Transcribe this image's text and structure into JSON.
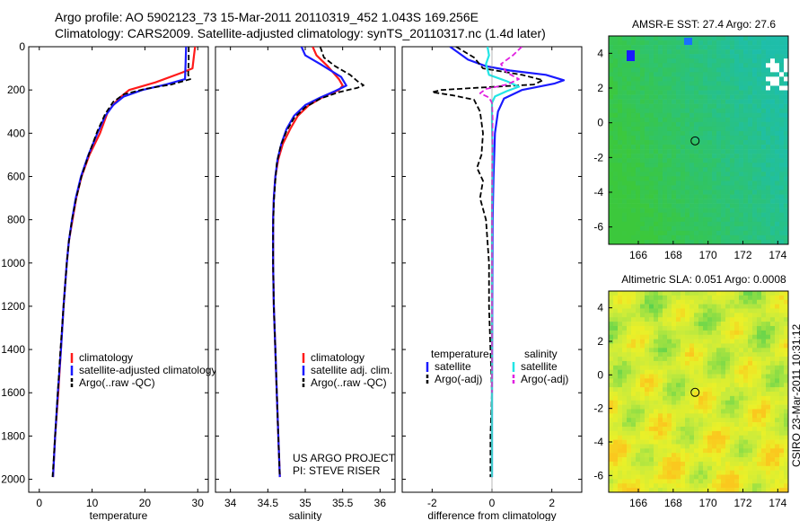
{
  "header": {
    "title_line1": "Argo profile: AO 5902123_73 15-Mar-2011 20110319_452 1.043S 169.256E",
    "title_line2": "Climatology: CARS2009. Satellite-adjusted climatology: synTS_20110317.nc (1.4d later)"
  },
  "side_stamp": "CSIRO 23-Mar-2011 10:31:12",
  "project_note": [
    "US ARGO PROJECT",
    "PI: STEVE RISER"
  ],
  "colors": {
    "climatology": "#ff1a1a",
    "satellite": "#1a1aff",
    "argo": "#000000",
    "sal_satellite": "#22e5e5",
    "sal_argo": "#e020e0"
  },
  "chart_data": [
    {
      "id": "temperature",
      "type": "line",
      "xlabel": "temperature",
      "ylabel": "",
      "xlim": [
        -2,
        32
      ],
      "ylim": [
        2060,
        0
      ],
      "xticks": [
        0,
        10,
        20,
        30
      ],
      "yticks": [
        0,
        200,
        400,
        600,
        800,
        1000,
        1200,
        1400,
        1600,
        1800,
        2000
      ],
      "legend": {
        "position": "lower-right",
        "entries": [
          "climatology",
          "satellite-adjusted climatology",
          "Argo(..raw -QC)"
        ]
      },
      "series": [
        {
          "name": "climatology",
          "color": "#ff1a1a",
          "width": 2.2,
          "dash": "",
          "points": [
            [
              29.5,
              0
            ],
            [
              29.3,
              40
            ],
            [
              29,
              100
            ],
            [
              27,
              120
            ],
            [
              22,
              165
            ],
            [
              17,
              200
            ],
            [
              15,
              240
            ],
            [
              13,
              300
            ],
            [
              11.5,
              400
            ],
            [
              9.5,
              500
            ],
            [
              8,
              600
            ],
            [
              7,
              700
            ],
            [
              6.3,
              800
            ],
            [
              5.6,
              900
            ],
            [
              5.2,
              1000
            ],
            [
              4.6,
              1200
            ],
            [
              4.1,
              1400
            ],
            [
              3.6,
              1600
            ],
            [
              3,
              1800
            ],
            [
              2.6,
              1990
            ]
          ]
        },
        {
          "name": "satellite-adjusted climatology",
          "color": "#1a1aff",
          "width": 2.2,
          "dash": "",
          "points": [
            [
              27.8,
              0
            ],
            [
              27.7,
              80
            ],
            [
              27.6,
              150
            ],
            [
              24,
              175
            ],
            [
              19.5,
              200
            ],
            [
              16,
              230
            ],
            [
              14,
              270
            ],
            [
              12.5,
              320
            ],
            [
              11,
              400
            ],
            [
              9.3,
              500
            ],
            [
              7.9,
              600
            ],
            [
              6.9,
              700
            ],
            [
              6.2,
              800
            ],
            [
              5.6,
              900
            ],
            [
              5.2,
              1000
            ],
            [
              4.6,
              1200
            ],
            [
              4.1,
              1400
            ],
            [
              3.5,
              1600
            ],
            [
              3,
              1800
            ],
            [
              2.6,
              1990
            ]
          ]
        },
        {
          "name": "Argo(..raw -QC)",
          "color": "#000000",
          "width": 1.8,
          "dash": "6,3",
          "points": [
            [
              28.3,
              0
            ],
            [
              28.3,
              60
            ],
            [
              28.2,
              130
            ],
            [
              28.6,
              150
            ],
            [
              25,
              175
            ],
            [
              20,
              195
            ],
            [
              16,
              220
            ],
            [
              14,
              255
            ],
            [
              12.5,
              310
            ],
            [
              11,
              390
            ],
            [
              9.5,
              490
            ],
            [
              8,
              600
            ],
            [
              7,
              700
            ],
            [
              6.2,
              800
            ],
            [
              5.6,
              900
            ],
            [
              5.2,
              1000
            ],
            [
              4.6,
              1200
            ],
            [
              4,
              1400
            ],
            [
              3.5,
              1600
            ],
            [
              3,
              1800
            ],
            [
              2.5,
              1990
            ]
          ]
        }
      ]
    },
    {
      "id": "salinity",
      "type": "line",
      "xlabel": "salinity",
      "ylabel": "",
      "xlim": [
        33.8,
        36.2
      ],
      "ylim": [
        2060,
        0
      ],
      "xticks": [
        34,
        34.5,
        35,
        35.5,
        36
      ],
      "yticks": [],
      "legend": {
        "position": "lower-right",
        "entries": [
          "climatology",
          "satellite adj. clim.",
          "Argo(..raw -QC)"
        ]
      },
      "series": [
        {
          "name": "climatology",
          "color": "#ff1a1a",
          "width": 2.2,
          "dash": "",
          "points": [
            [
              35.1,
              0
            ],
            [
              35.15,
              40
            ],
            [
              35.3,
              90
            ],
            [
              35.45,
              150
            ],
            [
              35.5,
              180
            ],
            [
              35.45,
              200
            ],
            [
              35.25,
              230
            ],
            [
              35.05,
              270
            ],
            [
              34.9,
              320
            ],
            [
              34.8,
              380
            ],
            [
              34.7,
              450
            ],
            [
              34.64,
              520
            ],
            [
              34.6,
              600
            ],
            [
              34.58,
              700
            ],
            [
              34.57,
              800
            ],
            [
              34.57,
              1000
            ],
            [
              34.58,
              1200
            ],
            [
              34.6,
              1400
            ],
            [
              34.62,
              1600
            ],
            [
              34.64,
              1800
            ],
            [
              34.66,
              1990
            ]
          ]
        },
        {
          "name": "satellite adj. clim.",
          "color": "#1a1aff",
          "width": 2.2,
          "dash": "",
          "points": [
            [
              34.95,
              0
            ],
            [
              35,
              40
            ],
            [
              35.2,
              80
            ],
            [
              35.48,
              140
            ],
            [
              35.55,
              180
            ],
            [
              35.4,
              205
            ],
            [
              35.2,
              235
            ],
            [
              35,
              270
            ],
            [
              34.85,
              320
            ],
            [
              34.75,
              380
            ],
            [
              34.68,
              450
            ],
            [
              34.63,
              520
            ],
            [
              34.6,
              600
            ],
            [
              34.58,
              700
            ],
            [
              34.57,
              800
            ],
            [
              34.57,
              1000
            ],
            [
              34.58,
              1200
            ],
            [
              34.6,
              1400
            ],
            [
              34.62,
              1600
            ],
            [
              34.64,
              1800
            ],
            [
              34.66,
              1990
            ]
          ]
        },
        {
          "name": "Argo(..raw -QC)",
          "color": "#000000",
          "width": 1.8,
          "dash": "6,3",
          "points": [
            [
              35.2,
              0
            ],
            [
              35.25,
              50
            ],
            [
              35.4,
              90
            ],
            [
              35.6,
              130
            ],
            [
              35.7,
              160
            ],
            [
              35.78,
              178
            ],
            [
              35.7,
              190
            ],
            [
              35.45,
              210
            ],
            [
              35.2,
              240
            ],
            [
              35,
              280
            ],
            [
              34.85,
              330
            ],
            [
              34.75,
              390
            ],
            [
              34.67,
              460
            ],
            [
              34.62,
              540
            ],
            [
              34.6,
              620
            ],
            [
              34.58,
              720
            ],
            [
              34.57,
              850
            ],
            [
              34.57,
              1000
            ],
            [
              34.58,
              1200
            ],
            [
              34.6,
              1400
            ],
            [
              34.62,
              1600
            ],
            [
              34.64,
              1800
            ],
            [
              34.66,
              1990
            ]
          ]
        }
      ]
    },
    {
      "id": "difference",
      "type": "line",
      "xlabel": "difference from climatology",
      "ylabel": "",
      "xlim": [
        -3,
        3
      ],
      "ylim": [
        2060,
        0
      ],
      "xticks": [
        -2,
        0,
        2
      ],
      "yticks": [],
      "legend": {
        "position": "lower-center",
        "headers": [
          "temperature",
          "salinity"
        ],
        "entries": [
          "satellite",
          "Argo(-adj)",
          "satellite",
          "Argo(-adj)"
        ]
      },
      "series": [
        {
          "name": "temperature satellite",
          "color": "#1a1aff",
          "width": 2.2,
          "dash": "",
          "points": [
            [
              -1.4,
              0
            ],
            [
              -0.8,
              60
            ],
            [
              -0.2,
              90
            ],
            [
              0.6,
              110
            ],
            [
              1.8,
              130
            ],
            [
              2.4,
              155
            ],
            [
              2.1,
              170
            ],
            [
              1.0,
              200
            ],
            [
              0.4,
              240
            ],
            [
              0.2,
              300
            ],
            [
              0.1,
              400
            ],
            [
              0.05,
              600
            ],
            [
              0.02,
              800
            ],
            [
              0.01,
              1200
            ],
            [
              0,
              1600
            ],
            [
              0,
              1990
            ]
          ]
        },
        {
          "name": "temperature Argo(-adj)",
          "color": "#000000",
          "width": 1.8,
          "dash": "6,3",
          "points": [
            [
              -1.2,
              0
            ],
            [
              -0.6,
              50
            ],
            [
              -0.3,
              100
            ],
            [
              1.0,
              130
            ],
            [
              1.7,
              155
            ],
            [
              1.4,
              175
            ],
            [
              -0.5,
              190
            ],
            [
              -1.7,
              200
            ],
            [
              -2.0,
              210
            ],
            [
              -1.3,
              225
            ],
            [
              -0.6,
              245
            ],
            [
              -0.4,
              300
            ],
            [
              -0.3,
              400
            ],
            [
              -0.35,
              500
            ],
            [
              -0.5,
              560
            ],
            [
              -0.3,
              620
            ],
            [
              -0.4,
              700
            ],
            [
              -0.2,
              800
            ],
            [
              -0.15,
              900
            ],
            [
              -0.1,
              1000
            ],
            [
              -0.1,
              1200
            ],
            [
              -0.05,
              1400
            ],
            [
              0,
              1600
            ],
            [
              -0.05,
              1800
            ],
            [
              -0.05,
              1990
            ]
          ]
        },
        {
          "name": "salinity satellite",
          "color": "#22e5e5",
          "width": 2.2,
          "dash": "",
          "points": [
            [
              -0.15,
              0
            ],
            [
              -0.1,
              40
            ],
            [
              -0.2,
              80
            ],
            [
              -0.1,
              130
            ],
            [
              0.5,
              160
            ],
            [
              0.9,
              185
            ],
            [
              0.5,
              205
            ],
            [
              0.1,
              230
            ],
            [
              0,
              260
            ],
            [
              0,
              350
            ],
            [
              0.02,
              500
            ],
            [
              0,
              800
            ],
            [
              0,
              1200
            ],
            [
              0,
              1600
            ],
            [
              0,
              1990
            ]
          ]
        },
        {
          "name": "salinity Argo(-adj)",
          "color": "#e020e0",
          "width": 1.8,
          "dash": "6,3",
          "points": [
            [
              1.0,
              0
            ],
            [
              0.7,
              40
            ],
            [
              0.3,
              80
            ],
            [
              0.5,
              120
            ],
            [
              0.9,
              150
            ],
            [
              0.5,
              175
            ],
            [
              -0.2,
              195
            ],
            [
              -0.4,
              215
            ],
            [
              -0.1,
              235
            ],
            [
              0,
              260
            ],
            [
              0.02,
              330
            ],
            [
              0.01,
              500
            ],
            [
              0,
              800
            ],
            [
              0,
              1200
            ],
            [
              0,
              1600
            ]
          ]
        }
      ]
    },
    {
      "id": "sst-map",
      "type": "heatmap",
      "title": "AMSR-E SST: 27.4  Argo: 27.6",
      "xlim": [
        164.3,
        174.6
      ],
      "ylim": [
        -7,
        5
      ],
      "xticks": [
        166,
        168,
        170,
        172,
        174
      ],
      "yticks": [
        -6,
        -4,
        -2,
        0,
        2,
        4
      ],
      "marker": {
        "lon": 169.256,
        "lat": -1.043
      }
    },
    {
      "id": "sla-map",
      "type": "heatmap",
      "title": "Altimetric SLA: 0.051  Argo: 0.0008",
      "xlim": [
        164.3,
        174.6
      ],
      "ylim": [
        -7,
        5
      ],
      "xticks": [
        166,
        168,
        170,
        172,
        174
      ],
      "yticks": [
        -6,
        -4,
        -2,
        0,
        2,
        4
      ],
      "marker": {
        "lon": 169.256,
        "lat": -1.043
      }
    }
  ]
}
